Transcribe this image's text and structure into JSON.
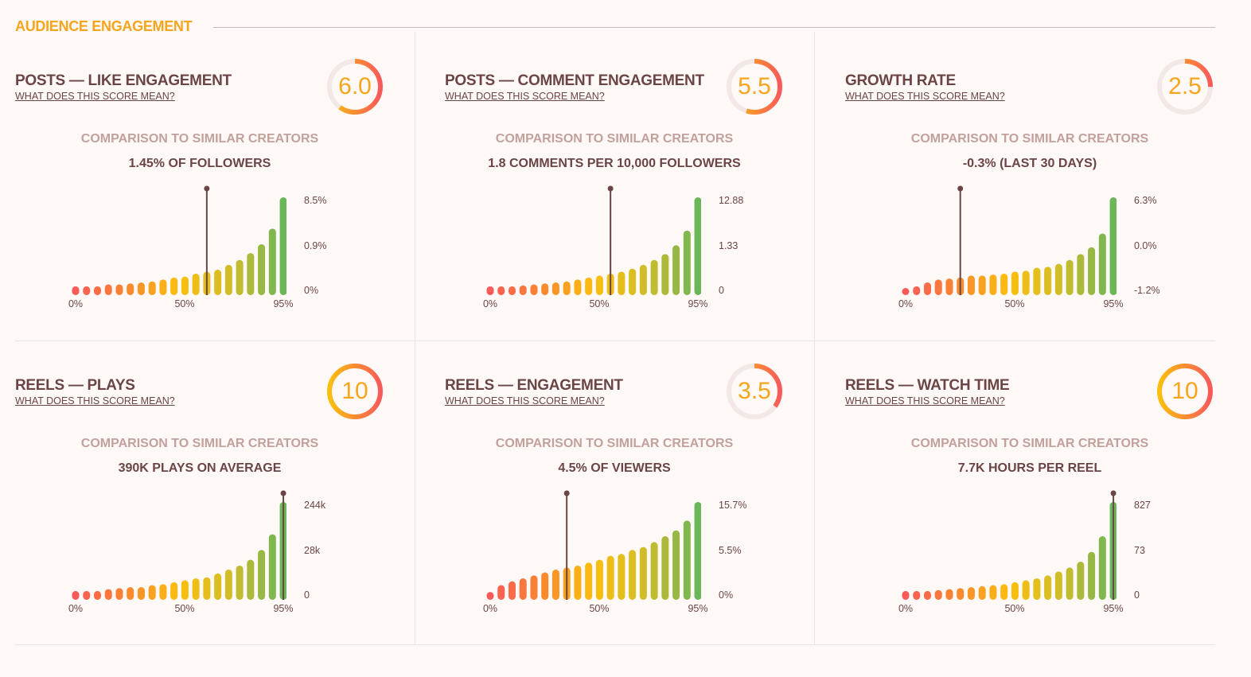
{
  "section_title": "AUDIENCE ENGAGEMENT",
  "link_label": "WHAT DOES THIS SCORE MEAN?",
  "comparison_label": "COMPARISON TO SIMILAR CREATORS",
  "colors": {
    "accent": "#f7a51c",
    "text": "#6b4545",
    "muted": "#c2a19c",
    "marker": "#6b4545",
    "ring_track": "#f2e8e6",
    "bar_gradient": [
      "#f85a5a",
      "#f9882f",
      "#fbbf0d",
      "#cfbd28",
      "#6cb65a"
    ]
  },
  "panels": [
    {
      "title": "POSTS — LIKE ENGAGEMENT",
      "score": "6.0",
      "score_fraction": 0.6,
      "value_text": "1.45% OF FOLLOWERS",
      "chart_data": {
        "type": "bar",
        "x_ticks": [
          "0%",
          "50%",
          "95%"
        ],
        "y_ticks": [
          "8.5%",
          "0.9%",
          "0%"
        ],
        "bar_levels": [
          0.09,
          0.09,
          0.09,
          0.11,
          0.11,
          0.12,
          0.13,
          0.14,
          0.16,
          0.18,
          0.19,
          0.22,
          0.24,
          0.26,
          0.31,
          0.36,
          0.43,
          0.52,
          0.68,
          1.0
        ],
        "marker_index": 12
      }
    },
    {
      "title": "POSTS — COMMENT ENGAGEMENT",
      "score": "5.5",
      "score_fraction": 0.55,
      "value_text": "1.8 COMMENTS PER 10,000 FOLLOWERS",
      "chart_data": {
        "type": "bar",
        "x_ticks": [
          "0%",
          "50%",
          "95%"
        ],
        "y_ticks": [
          "12.88",
          "1.33",
          "0"
        ],
        "bar_levels": [
          0.09,
          0.09,
          0.09,
          0.1,
          0.11,
          0.12,
          0.13,
          0.14,
          0.16,
          0.18,
          0.2,
          0.22,
          0.24,
          0.27,
          0.31,
          0.36,
          0.42,
          0.51,
          0.66,
          1.0
        ],
        "marker_index": 11
      }
    },
    {
      "title": "GROWTH RATE",
      "score": "2.5",
      "score_fraction": 0.25,
      "value_text": "-0.3% (LAST 30 DAYS)",
      "chart_data": {
        "type": "bar",
        "x_ticks": [
          "0%",
          "50%",
          "95%"
        ],
        "y_ticks": [
          "6.3%",
          "0.0%",
          "-1.2%"
        ],
        "bar_levels": [
          0.05,
          0.09,
          0.13,
          0.16,
          0.17,
          0.18,
          0.2,
          0.2,
          0.21,
          0.22,
          0.24,
          0.25,
          0.28,
          0.29,
          0.32,
          0.36,
          0.42,
          0.49,
          0.63,
          1.0
        ],
        "marker_index": 5
      }
    },
    {
      "title": "REELS — PLAYS",
      "score": "10",
      "score_fraction": 1.0,
      "value_text": "390K PLAYS ON AVERAGE",
      "chart_data": {
        "type": "bar",
        "x_ticks": [
          "0%",
          "50%",
          "95%"
        ],
        "y_ticks": [
          "244k",
          "28k",
          "0"
        ],
        "bar_levels": [
          0.09,
          0.09,
          0.09,
          0.11,
          0.12,
          0.13,
          0.13,
          0.15,
          0.16,
          0.18,
          0.2,
          0.22,
          0.23,
          0.27,
          0.31,
          0.35,
          0.41,
          0.51,
          0.67,
          1.0
        ],
        "marker_index": 19
      }
    },
    {
      "title": "REELS — ENGAGEMENT",
      "score": "3.5",
      "score_fraction": 0.35,
      "value_text": "4.5% OF VIEWERS",
      "chart_data": {
        "type": "bar",
        "x_ticks": [
          "0%",
          "50%",
          "95%"
        ],
        "y_ticks": [
          "15.7%",
          "5.5%",
          "0%"
        ],
        "bar_levels": [
          0.08,
          0.15,
          0.19,
          0.22,
          0.25,
          0.28,
          0.31,
          0.33,
          0.35,
          0.38,
          0.41,
          0.45,
          0.47,
          0.51,
          0.54,
          0.59,
          0.65,
          0.71,
          0.81,
          1.0
        ],
        "marker_index": 7
      }
    },
    {
      "title": "REELS — WATCH TIME",
      "score": "10",
      "score_fraction": 1.0,
      "value_text": "7.7K HOURS PER REEL",
      "chart_data": {
        "type": "bar",
        "x_ticks": [
          "0%",
          "50%",
          "95%"
        ],
        "y_ticks": [
          "827",
          "73",
          "0"
        ],
        "bar_levels": [
          0.09,
          0.09,
          0.09,
          0.1,
          0.11,
          0.12,
          0.13,
          0.14,
          0.15,
          0.16,
          0.18,
          0.2,
          0.22,
          0.25,
          0.29,
          0.33,
          0.39,
          0.49,
          0.65,
          1.0
        ],
        "marker_index": 19
      }
    }
  ]
}
